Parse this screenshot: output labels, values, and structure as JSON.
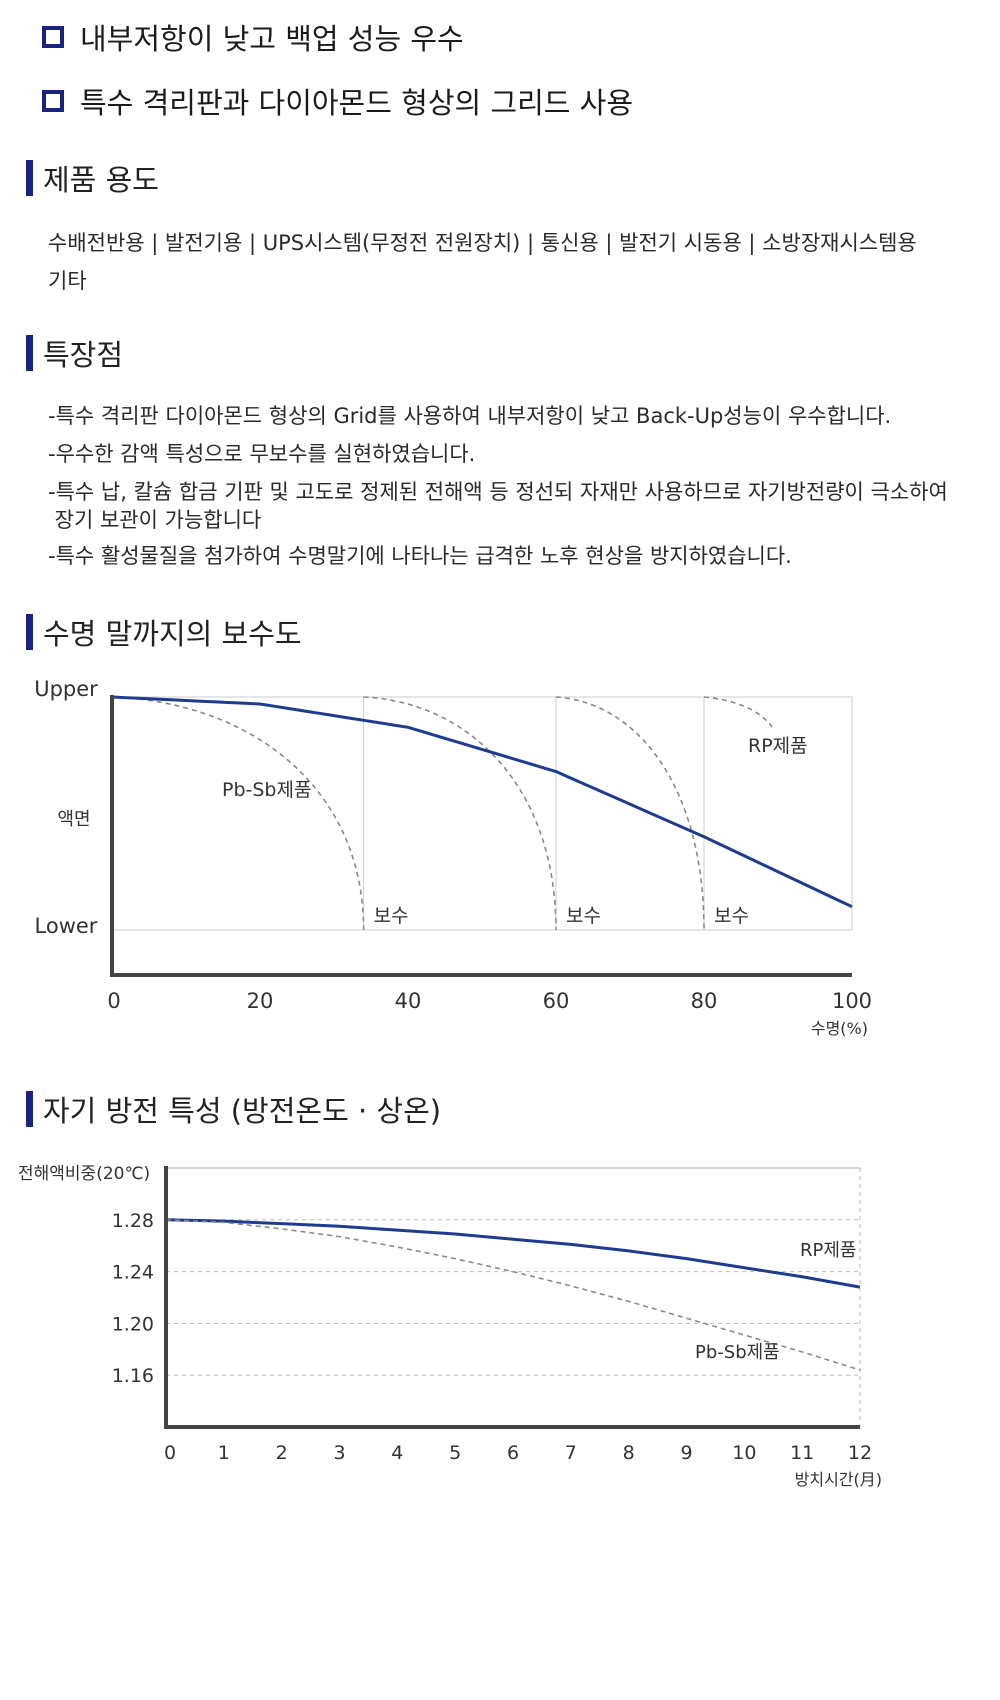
{
  "bullets": [
    "내부저항이 낮고 백업 성능 우수",
    "특수 격리판과 다이아몬드 형상의 그리드 사용"
  ],
  "usage": {
    "title": "제품 용도",
    "line1": "수배전반용 | 발전기용 | UPS시스템(무정전 전원장치) | 통신용 | 발전기 시동용 | 소방장재시스템용",
    "line2": "기타"
  },
  "features": {
    "title": "특장점",
    "items": [
      "-특수 격리판 다이아몬드 형상의 Grid를 사용하여 내부저항이 낮고 Back-Up성능이 우수합니다.",
      "-우수한 감액 특성으로 무보수를 실현하였습니다.",
      "-특수 납, 칼슘 합금 기판 및 고도로 정제된 전해액 등 정선되 자재만 사용하므로 자기방전량이 극소하여",
      " 장기 보관이 가능합니다",
      "-특수 활성물질을 첨가하여 수명말기에 나타나는 급격한 노후 현상을 방지하였습니다."
    ]
  },
  "colors": {
    "accent": "#1a237e",
    "curve": "#1f3b8f",
    "dashed": "#8a8a8a",
    "grid": "#cccccc"
  },
  "chart_data": [
    {
      "type": "line",
      "title": "수명 말까지의 보수도",
      "xlabel": "수명(%)",
      "ylabel": "액면",
      "x_ticks": [
        "0",
        "20",
        "40",
        "60",
        "80",
        "100"
      ],
      "xlim": [
        0,
        100
      ],
      "y_levels": [
        "Upper",
        "Lower"
      ],
      "series": [
        {
          "name": "RP제품",
          "style": "solid",
          "x": [
            0,
            20,
            40,
            60,
            80,
            100
          ],
          "y": [
            1.0,
            0.97,
            0.87,
            0.68,
            0.4,
            0.1
          ]
        }
      ],
      "dashed_labels": [
        "Pb-Sb제품",
        "RP제품"
      ],
      "maintenance_x": [
        34,
        60,
        80
      ],
      "maintenance_label": "보수",
      "grid_x": [
        34,
        60,
        80,
        100
      ]
    },
    {
      "type": "line",
      "title": "자기 방전 특성 (방전온도 · 상온)",
      "xlabel": "방치시간(月)",
      "ylabel": "전해액비중(20℃)",
      "x": [
        0,
        1,
        2,
        3,
        4,
        5,
        6,
        7,
        8,
        9,
        10,
        11,
        12
      ],
      "y_ticks": [
        "1.28",
        "1.24",
        "1.20",
        "1.16"
      ],
      "xlim": [
        0,
        12
      ],
      "ylim": [
        1.12,
        1.32
      ],
      "series": [
        {
          "name": "RP제품",
          "style": "solid",
          "values": [
            1.28,
            1.279,
            1.277,
            1.275,
            1.272,
            1.269,
            1.265,
            1.261,
            1.256,
            1.25,
            1.243,
            1.236,
            1.228
          ]
        },
        {
          "name": "Pb-Sb제품",
          "style": "dashed",
          "values": [
            1.28,
            1.278,
            1.273,
            1.267,
            1.259,
            1.25,
            1.24,
            1.229,
            1.217,
            1.204,
            1.191,
            1.178,
            1.164
          ]
        }
      ]
    }
  ]
}
